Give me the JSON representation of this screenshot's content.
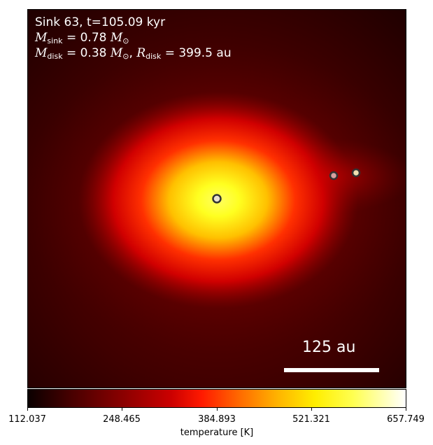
{
  "sink_title": "Sink 63, t=105.09 kyr",
  "sink_mass": {
    "symbol": "M",
    "sub": "sink",
    "value": "= 0.78",
    "unit_symbol": "M",
    "unit_sub": "⊙"
  },
  "disk": {
    "mass_symbol": "M",
    "mass_sub": "disk",
    "mass_value": "= 0.38",
    "mass_unit": "M",
    "mass_unit_sub": "⊙",
    "radius_symbol": "R",
    "radius_sub": "disk",
    "radius_value": "= 399.5 au"
  },
  "scale_bar": {
    "label": "125 au"
  },
  "colorbar": {
    "ticks": [
      "112.037",
      "248.465",
      "384.893",
      "521.321",
      "657.749"
    ],
    "label": "temperature [K]"
  },
  "colors": {
    "hot": "#ffff40",
    "mid": "#ff2a00",
    "cool": "#5a0000"
  }
}
